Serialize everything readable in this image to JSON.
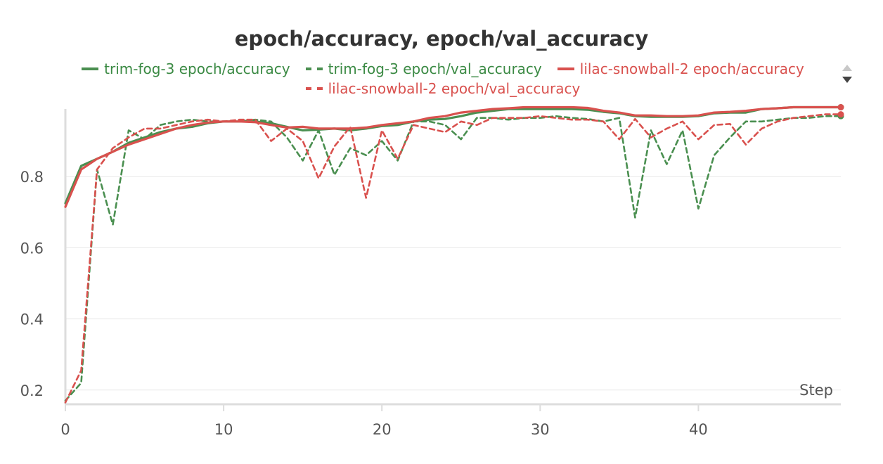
{
  "chart_data": {
    "type": "line",
    "title": "epoch/accuracy, epoch/val_accuracy",
    "xlabel": "Step",
    "ylabel": "",
    "xlim": [
      0,
      49
    ],
    "ylim": [
      0.16,
      1.0
    ],
    "xticks": [
      0,
      10,
      20,
      30,
      40
    ],
    "yticks": [
      0.2,
      0.4,
      0.6,
      0.8
    ],
    "grid": true,
    "legend_position": "top",
    "x": [
      0,
      1,
      2,
      3,
      4,
      5,
      6,
      7,
      8,
      9,
      10,
      11,
      12,
      13,
      14,
      15,
      16,
      17,
      18,
      19,
      20,
      21,
      22,
      23,
      24,
      25,
      26,
      27,
      28,
      29,
      30,
      31,
      32,
      33,
      34,
      35,
      36,
      37,
      38,
      39,
      40,
      41,
      42,
      43,
      44,
      45,
      46,
      47,
      48,
      49
    ],
    "series": [
      {
        "name": "trim-fog-3 epoch/accuracy",
        "color": "#4a8f50",
        "dash": false,
        "values": [
          0.725,
          0.83,
          0.85,
          0.87,
          0.895,
          0.91,
          0.925,
          0.935,
          0.94,
          0.95,
          0.955,
          0.955,
          0.955,
          0.95,
          0.94,
          0.93,
          0.932,
          0.935,
          0.93,
          0.935,
          0.942,
          0.945,
          0.955,
          0.96,
          0.962,
          0.97,
          0.98,
          0.985,
          0.99,
          0.99,
          0.99,
          0.99,
          0.99,
          0.988,
          0.982,
          0.978,
          0.97,
          0.968,
          0.968,
          0.968,
          0.97,
          0.978,
          0.98,
          0.98,
          0.99,
          0.992,
          0.995,
          0.995,
          0.995,
          0.995
        ]
      },
      {
        "name": "trim-fog-3 epoch/val_accuracy",
        "color": "#4a8f50",
        "dash": true,
        "values": [
          0.17,
          0.22,
          0.82,
          0.665,
          0.93,
          0.905,
          0.945,
          0.955,
          0.96,
          0.955,
          0.955,
          0.955,
          0.96,
          0.955,
          0.91,
          0.845,
          0.93,
          0.805,
          0.88,
          0.86,
          0.9,
          0.845,
          0.955,
          0.955,
          0.945,
          0.905,
          0.965,
          0.965,
          0.96,
          0.965,
          0.965,
          0.97,
          0.965,
          0.962,
          0.955,
          0.965,
          0.685,
          0.93,
          0.835,
          0.93,
          0.71,
          0.86,
          0.91,
          0.955,
          0.955,
          0.96,
          0.965,
          0.965,
          0.97,
          0.97
        ]
      },
      {
        "name": "lilac-snowball-2 epoch/accuracy",
        "color": "#d9514e",
        "dash": false,
        "values": [
          0.715,
          0.82,
          0.85,
          0.87,
          0.89,
          0.905,
          0.92,
          0.935,
          0.945,
          0.952,
          0.955,
          0.955,
          0.953,
          0.945,
          0.938,
          0.94,
          0.935,
          0.935,
          0.935,
          0.938,
          0.945,
          0.95,
          0.955,
          0.965,
          0.97,
          0.98,
          0.985,
          0.99,
          0.992,
          0.995,
          0.995,
          0.995,
          0.995,
          0.993,
          0.985,
          0.98,
          0.972,
          0.972,
          0.97,
          0.97,
          0.972,
          0.98,
          0.982,
          0.985,
          0.99,
          0.992,
          0.995,
          0.995,
          0.995,
          0.995
        ]
      },
      {
        "name": "lilac-snowball-2 epoch/val_accuracy",
        "color": "#d9514e",
        "dash": true,
        "values": [
          0.165,
          0.255,
          0.82,
          0.88,
          0.91,
          0.935,
          0.935,
          0.945,
          0.955,
          0.96,
          0.955,
          0.96,
          0.96,
          0.9,
          0.935,
          0.9,
          0.795,
          0.885,
          0.94,
          0.74,
          0.93,
          0.85,
          0.945,
          0.935,
          0.925,
          0.955,
          0.945,
          0.965,
          0.965,
          0.965,
          0.97,
          0.965,
          0.96,
          0.96,
          0.955,
          0.905,
          0.962,
          0.91,
          0.935,
          0.955,
          0.905,
          0.945,
          0.948,
          0.89,
          0.935,
          0.955,
          0.965,
          0.97,
          0.975,
          0.975
        ]
      }
    ]
  },
  "scroll": {
    "up_icon": "chevron-up-icon",
    "down_icon": "chevron-down-icon"
  }
}
